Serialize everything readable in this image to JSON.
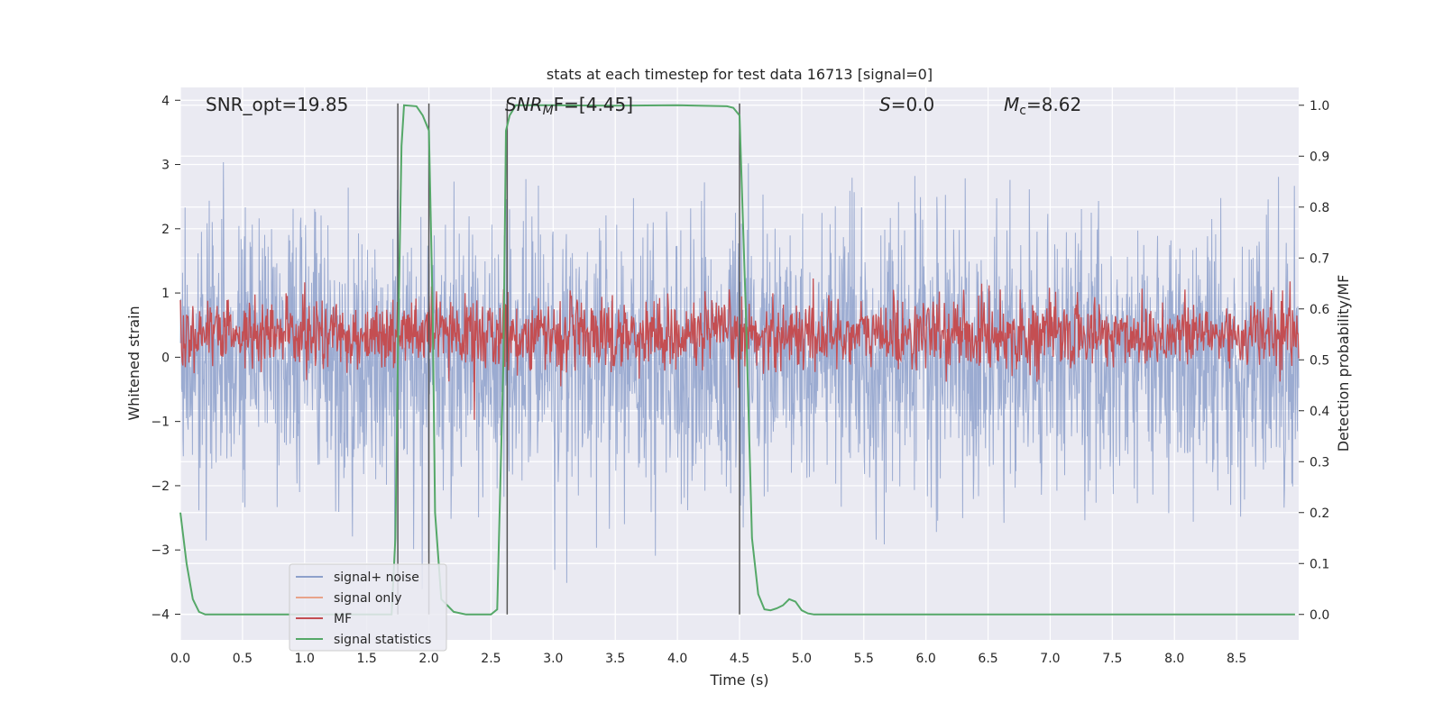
{
  "chart_data": {
    "type": "line",
    "title": "stats at each timestep for test data 16713 [signal=0]",
    "xlabel": "Time (s)",
    "ylabel": "Whitened strain",
    "y2label": "Detection probability/MF",
    "xlim": [
      0,
      9.0
    ],
    "ylim": [
      -4.4,
      4.2
    ],
    "y2lim": [
      -0.05,
      1.035
    ],
    "xticks": [
      "0.0",
      "0.5",
      "1.0",
      "1.5",
      "2.0",
      "2.5",
      "3.0",
      "3.5",
      "4.0",
      "4.5",
      "5.0",
      "5.5",
      "6.0",
      "6.5",
      "7.0",
      "7.5",
      "8.0",
      "8.5"
    ],
    "yticks": [
      "4",
      "3",
      "2",
      "1",
      "0",
      "−1",
      "−2",
      "−3",
      "−4"
    ],
    "y2ticks": [
      "1.0",
      "0.9",
      "0.8",
      "0.7",
      "0.6",
      "0.5",
      "0.4",
      "0.3",
      "0.2",
      "0.1",
      "0.0"
    ],
    "grid": true,
    "legend_position": "lower-left",
    "annotations": {
      "snr_opt": "SNR_opt=19.85",
      "snr_mf_italic": "SNR",
      "snr_mf_sub": "M",
      "snr_mf_rest": "F=[4.45]",
      "s_italic": "S",
      "s_rest": "=0.0",
      "mc_italic": "M",
      "mc_sub": "c",
      "mc_rest": "=8.62"
    },
    "vertical_lines_x": [
      1.75,
      2.0,
      2.63,
      4.5
    ],
    "series": [
      {
        "name": "signal+ noise",
        "color": "#8da0cb",
        "noise_amplitude": 1.0
      },
      {
        "name": "signal only",
        "color": "#e8a38a"
      },
      {
        "name": "MF",
        "color": "#c44e52",
        "level": 0.55,
        "jitter": 0.035
      },
      {
        "name": "signal statistics",
        "color": "#55a868",
        "x": [
          0.0,
          0.05,
          0.1,
          0.15,
          0.2,
          0.3,
          0.5,
          1.0,
          1.5,
          1.7,
          1.73,
          1.75,
          1.78,
          1.8,
          1.9,
          1.95,
          2.0,
          2.03,
          2.05,
          2.1,
          2.2,
          2.3,
          2.4,
          2.5,
          2.55,
          2.6,
          2.62,
          2.65,
          2.7,
          3.0,
          3.5,
          4.0,
          4.4,
          4.45,
          4.5,
          4.55,
          4.6,
          4.65,
          4.7,
          4.75,
          4.8,
          4.85,
          4.9,
          4.95,
          5.0,
          5.05,
          5.1,
          5.2,
          6.0,
          7.0,
          8.0,
          8.97
        ],
        "y": [
          0.2,
          0.1,
          0.03,
          0.005,
          0.0,
          0.0,
          0.0,
          0.0,
          0.0,
          0.0,
          0.15,
          0.5,
          0.92,
          1.0,
          0.998,
          0.98,
          0.95,
          0.6,
          0.2,
          0.03,
          0.005,
          0.0,
          0.0,
          0.0,
          0.01,
          0.5,
          0.95,
          0.98,
          1.0,
          1.0,
          0.999,
          1.0,
          0.998,
          0.995,
          0.98,
          0.6,
          0.15,
          0.04,
          0.01,
          0.008,
          0.012,
          0.018,
          0.03,
          0.025,
          0.008,
          0.002,
          0.0,
          0.0,
          0.0,
          0.0,
          0.0,
          0.0
        ]
      }
    ]
  }
}
